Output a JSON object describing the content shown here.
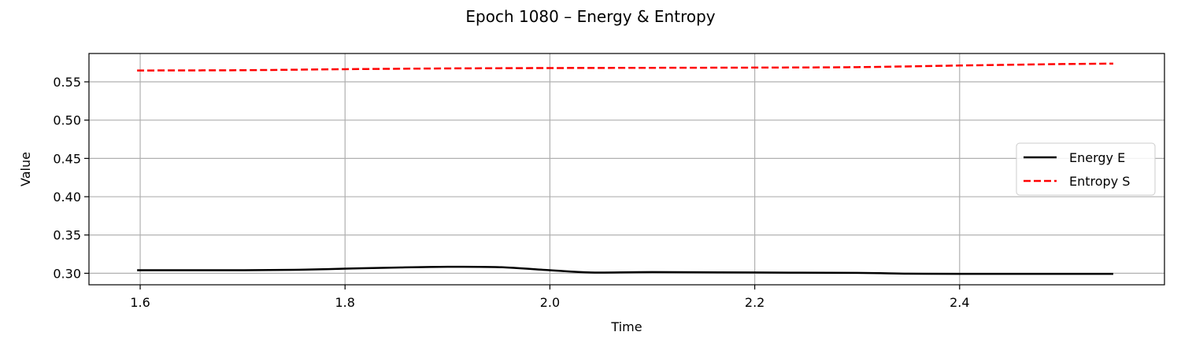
{
  "chart_data": {
    "type": "line",
    "title": "Epoch 1080 – Energy & Entropy",
    "xlabel": "Time",
    "ylabel": "Value",
    "xlim": [
      1.55,
      2.6
    ],
    "ylim": [
      0.285,
      0.587
    ],
    "xticks": [
      1.6,
      1.8,
      2.0,
      2.2,
      2.4
    ],
    "xtick_labels": [
      "1.6",
      "1.8",
      "2.0",
      "2.2",
      "2.4"
    ],
    "yticks": [
      0.3,
      0.35,
      0.4,
      0.45,
      0.5,
      0.55
    ],
    "ytick_labels": [
      "0.30",
      "0.35",
      "0.40",
      "0.45",
      "0.50",
      "0.55"
    ],
    "grid": true,
    "legend_position": "center-right",
    "series": [
      {
        "name": "Energy E",
        "color": "#000000",
        "style": "solid",
        "x": [
          1.597,
          1.65,
          1.7,
          1.75,
          1.8,
          1.85,
          1.9,
          1.95,
          2.0,
          2.04,
          2.1,
          2.2,
          2.3,
          2.35,
          2.4,
          2.5,
          2.55
        ],
        "y": [
          0.304,
          0.304,
          0.304,
          0.3045,
          0.306,
          0.3075,
          0.3085,
          0.308,
          0.304,
          0.301,
          0.3015,
          0.301,
          0.3005,
          0.2995,
          0.2993,
          0.2992,
          0.2992
        ]
      },
      {
        "name": "Entropy S",
        "color": "#ff0000",
        "style": "dashed",
        "x": [
          1.597,
          1.7,
          1.8,
          1.9,
          2.0,
          2.1,
          2.2,
          2.3,
          2.4,
          2.5,
          2.55
        ],
        "y": [
          0.5648,
          0.5652,
          0.5665,
          0.5675,
          0.568,
          0.5683,
          0.5686,
          0.5692,
          0.5713,
          0.5732,
          0.5738
        ]
      }
    ]
  }
}
